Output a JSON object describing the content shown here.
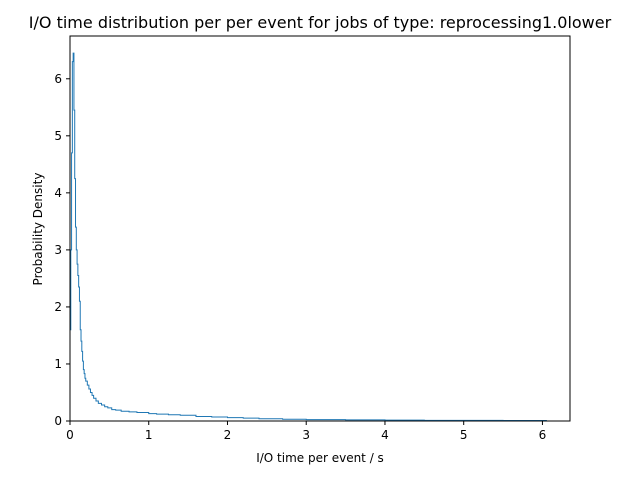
{
  "chart_data": {
    "type": "line",
    "style": "step-histogram",
    "title": "I/O time distribution per per event for jobs of type: reprocessing1.0lower",
    "xlabel": "I/O time per event / s",
    "ylabel": "Probability Density",
    "xlim": [
      0,
      6.35
    ],
    "ylim": [
      0,
      6.75
    ],
    "xticks": [
      "0",
      "1",
      "2",
      "3",
      "4",
      "5",
      "6"
    ],
    "yticks": [
      "0",
      "1",
      "2",
      "3",
      "4",
      "5",
      "6"
    ],
    "grid": false,
    "line_color": "#1f77b4",
    "series": [
      {
        "x": [
          0.0,
          0.01,
          0.02,
          0.03,
          0.04,
          0.05,
          0.06,
          0.07,
          0.08,
          0.09,
          0.1,
          0.11,
          0.12,
          0.13,
          0.14,
          0.15,
          0.16,
          0.17,
          0.18,
          0.19,
          0.2,
          0.22,
          0.24,
          0.26,
          0.28,
          0.3,
          0.33,
          0.36,
          0.4,
          0.44,
          0.48,
          0.53,
          0.58,
          0.65,
          0.75,
          0.85,
          1.0,
          1.1,
          1.25,
          1.4,
          1.6,
          1.8,
          2.0,
          2.2,
          2.4,
          2.7,
          3.0,
          3.5,
          4.0,
          4.5,
          5.0,
          5.5,
          6.05
        ],
        "y": [
          1.6,
          3.0,
          4.7,
          6.3,
          6.45,
          5.45,
          4.25,
          3.4,
          3.0,
          2.75,
          2.55,
          2.35,
          2.1,
          1.6,
          1.4,
          1.22,
          1.05,
          0.9,
          0.83,
          0.75,
          0.7,
          0.63,
          0.56,
          0.5,
          0.45,
          0.4,
          0.35,
          0.31,
          0.28,
          0.25,
          0.23,
          0.2,
          0.19,
          0.17,
          0.16,
          0.15,
          0.13,
          0.12,
          0.11,
          0.1,
          0.08,
          0.07,
          0.06,
          0.05,
          0.04,
          0.03,
          0.025,
          0.02,
          0.015,
          0.012,
          0.01,
          0.008,
          0.0
        ]
      }
    ]
  }
}
